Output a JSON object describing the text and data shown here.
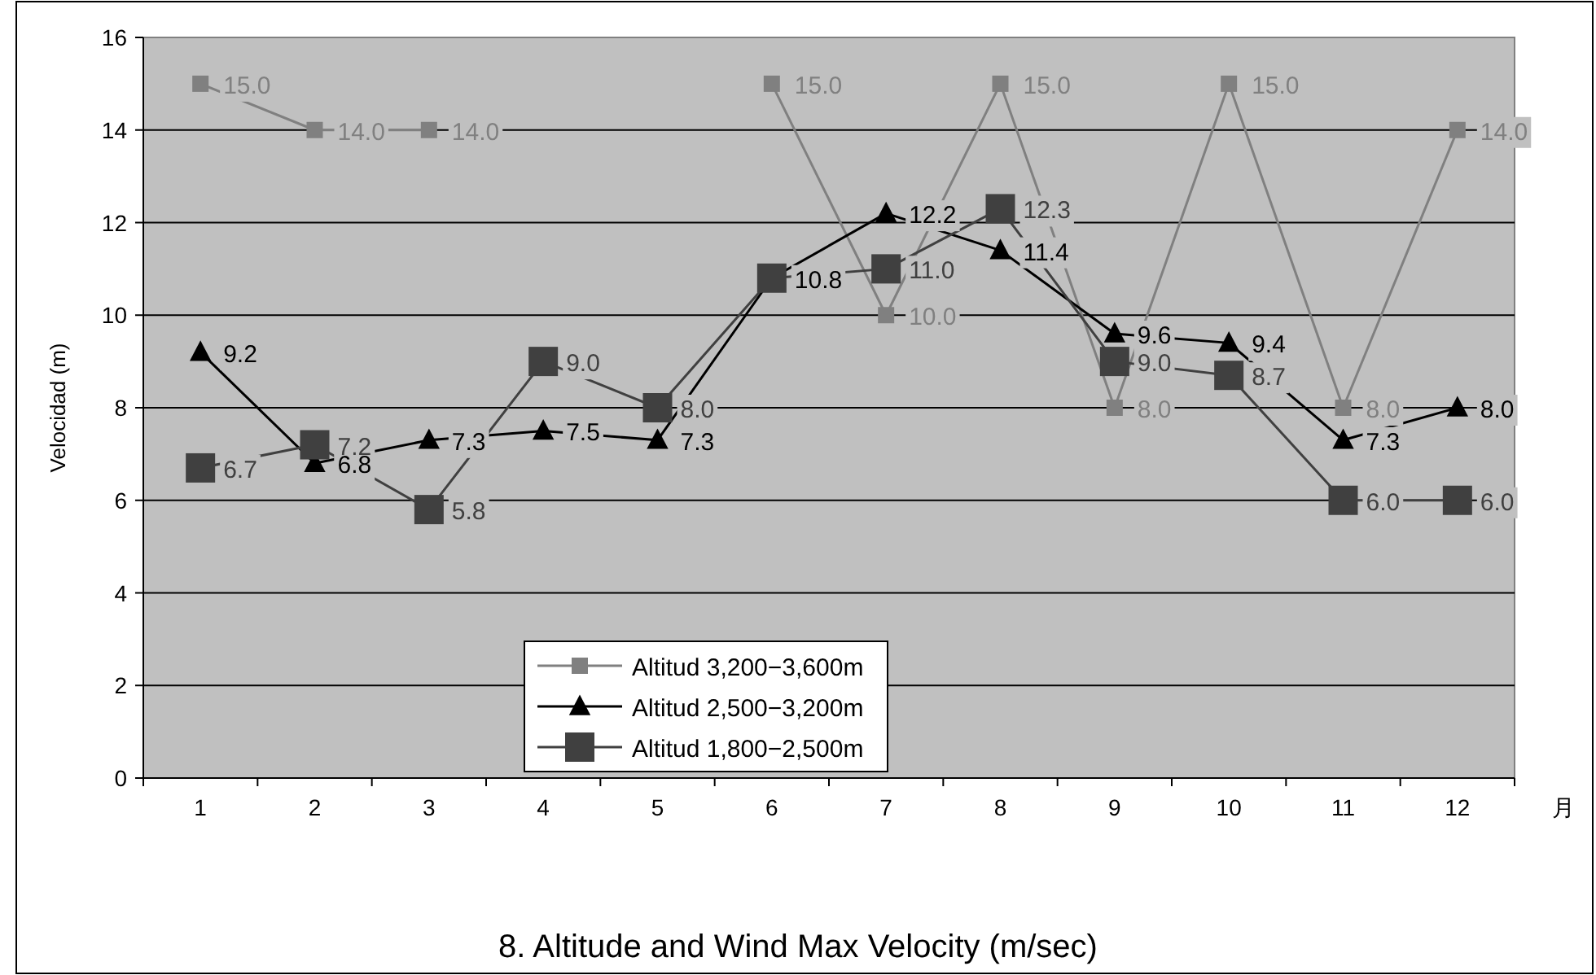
{
  "chart_data": {
    "type": "line",
    "title": "8. Altitude and Wind Max Velocity (m/sec)",
    "ylabel": "Velocidad (m)",
    "xlabel": "月",
    "categories": [
      "1",
      "2",
      "3",
      "4",
      "5",
      "6",
      "7",
      "8",
      "9",
      "10",
      "11",
      "12"
    ],
    "ylim": [
      0,
      16
    ],
    "yticks": [
      0,
      2,
      4,
      6,
      8,
      10,
      12,
      14,
      16
    ],
    "grid": "y",
    "legend": "bottom left",
    "series": [
      {
        "name": "Altitud 3,200−3,600m",
        "color": "#808080",
        "marker": "square",
        "values": [
          15.0,
          14.0,
          14.0,
          null,
          null,
          15.0,
          10.0,
          15.0,
          8.0,
          15.0,
          8.0,
          14.0
        ],
        "value_labels": [
          "15.0",
          "14.0",
          "14.0",
          null,
          null,
          "15.0",
          "10.0",
          "15.0",
          "8.0",
          "15.0",
          "8.0",
          "14.0"
        ]
      },
      {
        "name": "Altitud 2,500−3,200m",
        "color": "#000000",
        "marker": "triangle",
        "values": [
          9.2,
          6.8,
          7.3,
          7.5,
          7.3,
          10.8,
          12.2,
          11.4,
          9.6,
          9.4,
          7.3,
          8.0
        ],
        "value_labels": [
          "9.2",
          "6.8",
          "7.3",
          "7.5",
          "7.3",
          "10.8",
          "12.2",
          "11.4",
          "9.6",
          "9.4",
          "7.3",
          "8.0"
        ]
      },
      {
        "name": "Altitud 1,800−2,500m",
        "color": "#404040",
        "marker": "square",
        "values": [
          6.7,
          7.2,
          5.8,
          9.0,
          8.0,
          10.8,
          11.0,
          12.3,
          9.0,
          8.7,
          6.0,
          6.0
        ],
        "value_labels": [
          "6.7",
          "7.2",
          "5.8",
          "9.0",
          "8.0",
          null,
          "11.0",
          "12.3",
          "9.0",
          "8.7",
          "6.0",
          "6.0"
        ]
      }
    ]
  }
}
